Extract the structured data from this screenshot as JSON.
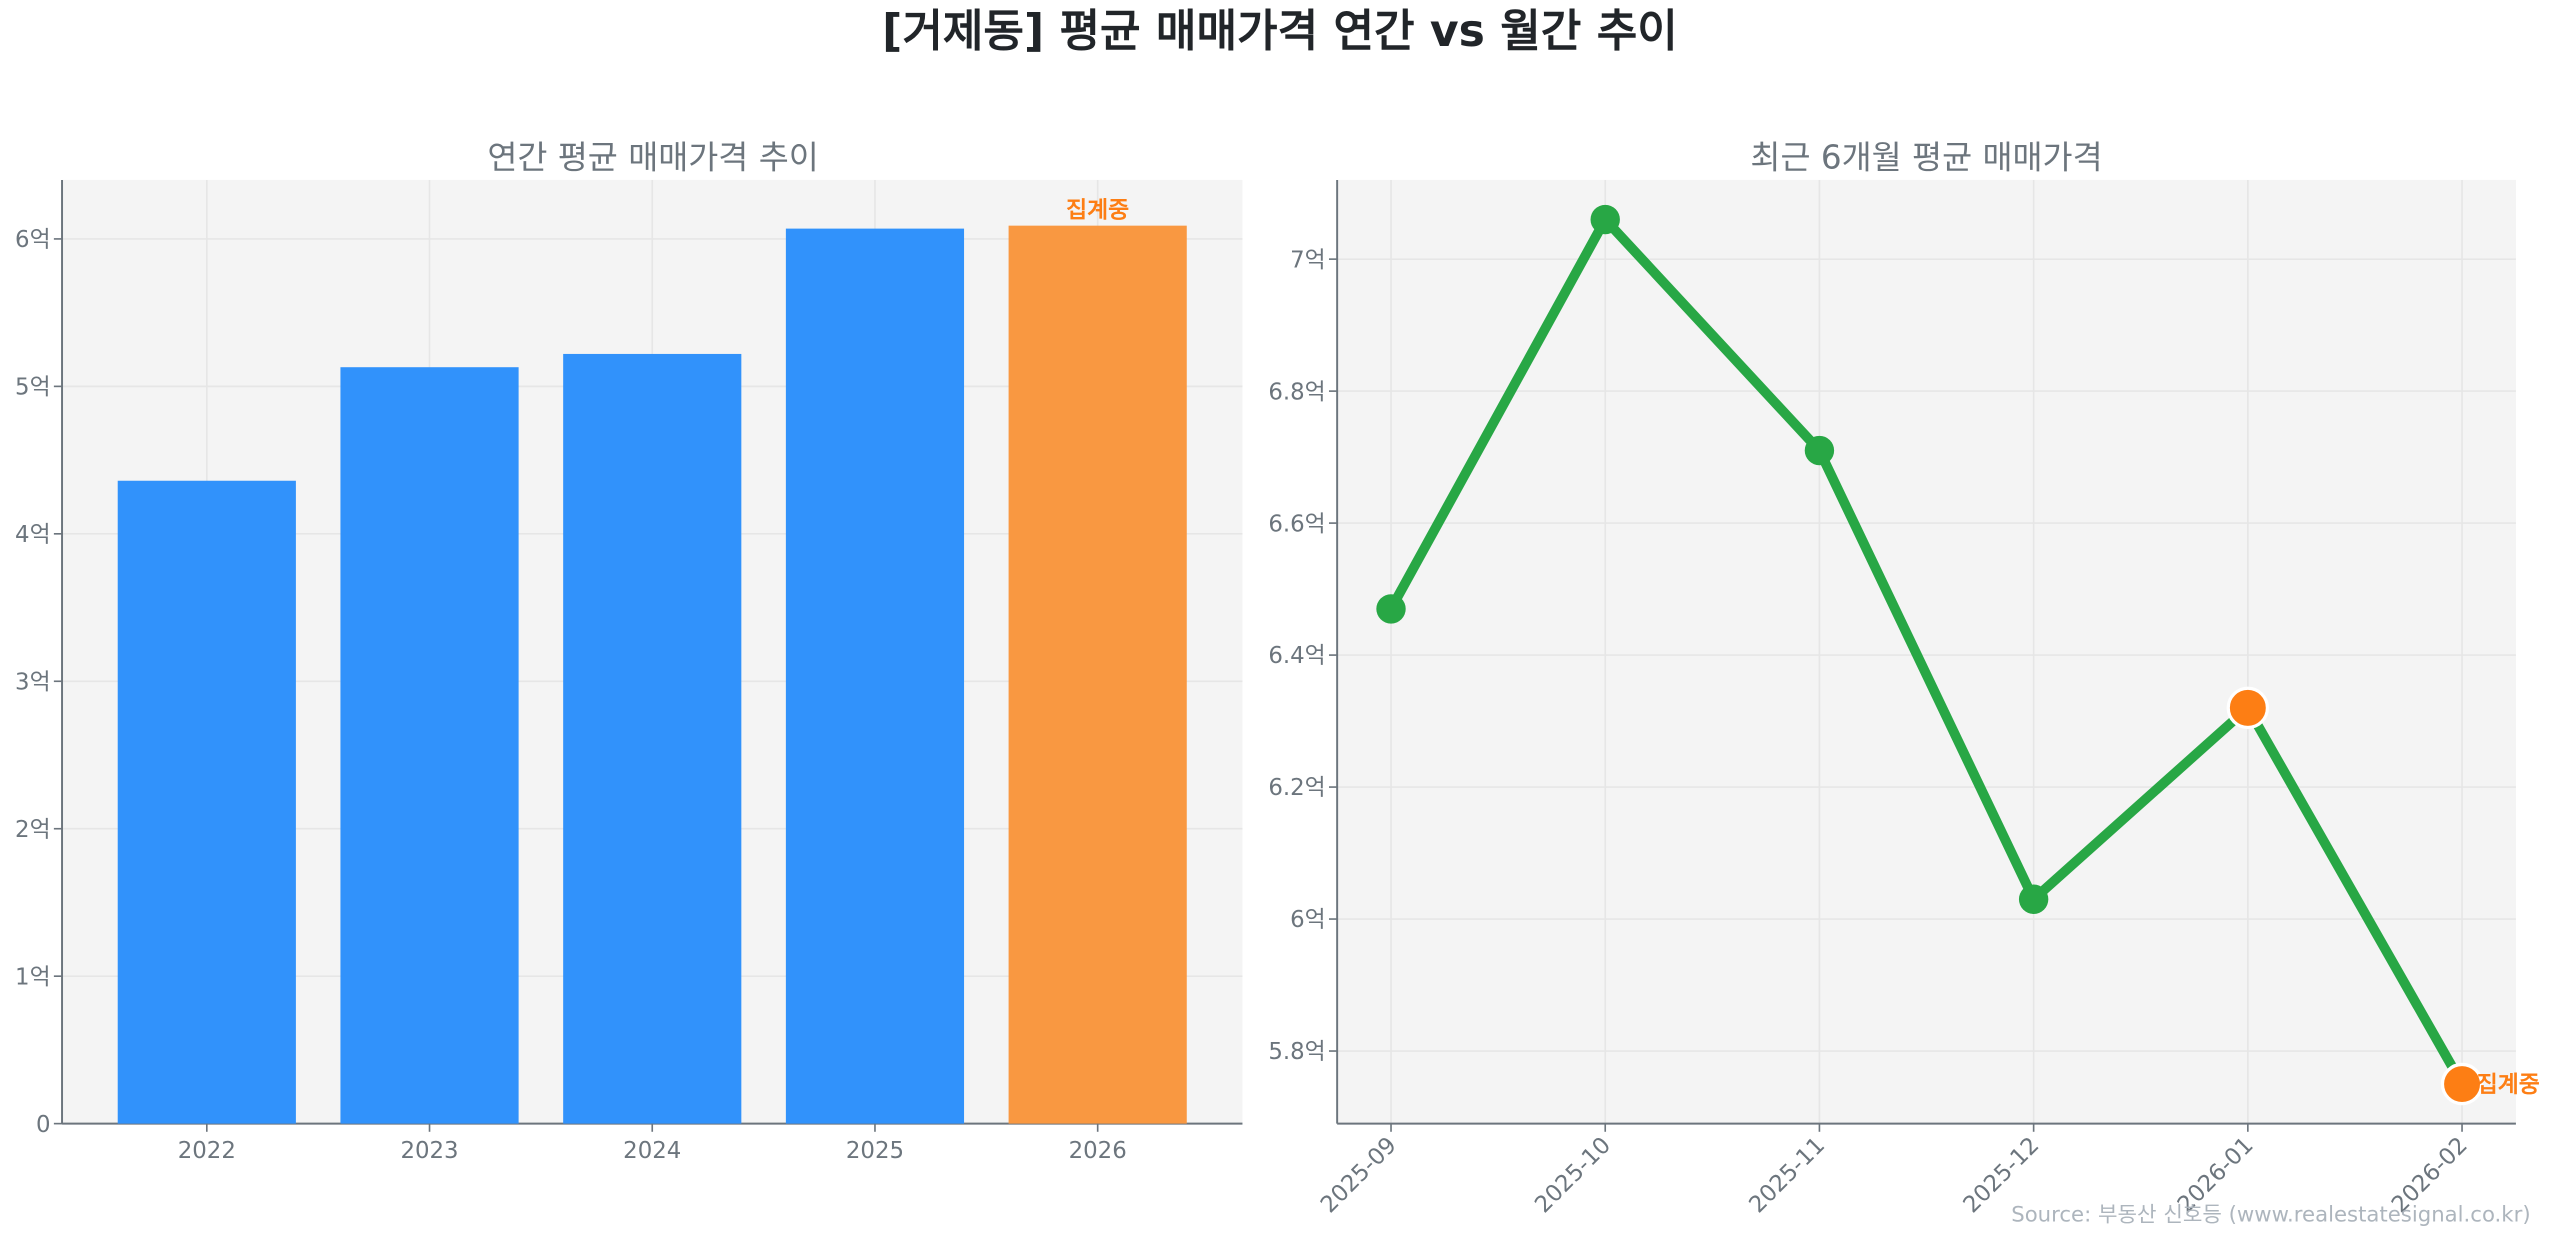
{
  "title": "[거제동] 평균 매매가격 연간 vs 월간 추이",
  "source": "Source: 부동산 신호등 (www.realestatesignal.co.kr)",
  "colors": {
    "bar": "#3192fb",
    "bar_partial": "#f99841",
    "line": "#28a745",
    "partial_marker": "#fd7e14",
    "annotation": "#fd7e14",
    "plot_bg": "#f4f4f4",
    "grid": "#e6e6e6"
  },
  "chart_data": [
    {
      "type": "bar",
      "title": "연간 평균 매매가격 추이",
      "categories": [
        "2022",
        "2023",
        "2024",
        "2025",
        "2026"
      ],
      "values": [
        4.36,
        5.13,
        5.22,
        6.07,
        6.09
      ],
      "unit": "억",
      "ylim": [
        0,
        6.4
      ],
      "yticks": [
        0,
        1,
        2,
        3,
        4,
        5,
        6
      ],
      "ytick_labels": [
        "0",
        "1억",
        "2억",
        "3억",
        "4억",
        "5억",
        "6억"
      ],
      "grid": true,
      "partial_index": 4,
      "annotation": "집계중"
    },
    {
      "type": "line",
      "title": "최근 6개월 평균 매매가격",
      "categories": [
        "2025-09",
        "2025-10",
        "2025-11",
        "2025-12",
        "2026-01",
        "2026-02"
      ],
      "values": [
        6.47,
        7.06,
        6.71,
        6.03,
        6.32,
        5.75
      ],
      "unit": "억",
      "ylim": [
        5.69,
        7.12
      ],
      "yticks": [
        5.8,
        6.0,
        6.2,
        6.4,
        6.6,
        6.8,
        7.0
      ],
      "ytick_labels": [
        "5.8억",
        "6억",
        "6.2억",
        "6.4억",
        "6.6억",
        "6.8억",
        "7억"
      ],
      "grid": true,
      "highlight_indices": [
        4,
        5
      ],
      "annotation": "집계중",
      "annotation_index": 5,
      "xtick_rotation": 45
    }
  ]
}
